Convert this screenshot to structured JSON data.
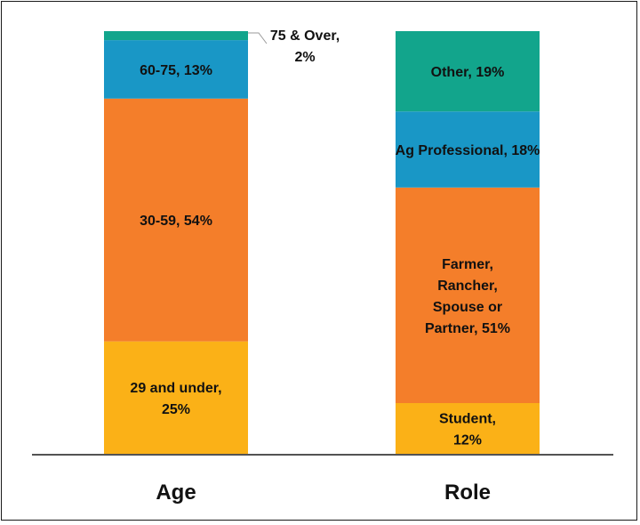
{
  "chart_data": {
    "type": "bar",
    "stacked": true,
    "normalized": true,
    "categories": [
      "Age",
      "Role"
    ],
    "bars": [
      {
        "category": "Age",
        "segments": [
          {
            "lines": [
              "29 and under,",
              "25%"
            ],
            "value": 25,
            "color": "#FBB117"
          },
          {
            "lines": [
              "30-59, 54%"
            ],
            "value": 54,
            "color": "#F47E2A"
          },
          {
            "lines": [
              "60-75, 13%"
            ],
            "value": 13,
            "color": "#1997C6"
          },
          {
            "lines": [
              "75 & Over,",
              "2%"
            ],
            "value": 2,
            "color": "#12A58C",
            "callout": true
          }
        ]
      },
      {
        "category": "Role",
        "segments": [
          {
            "lines": [
              "Student,",
              "12%"
            ],
            "value": 12,
            "color": "#FBB117"
          },
          {
            "lines": [
              "Farmer,",
              "Rancher,",
              "Spouse or",
              "Partner, 51%"
            ],
            "value": 51,
            "color": "#F47E2A"
          },
          {
            "lines": [
              "Ag Professional, 18%"
            ],
            "value": 18,
            "color": "#1997C6"
          },
          {
            "lines": [
              "Other, 19%"
            ],
            "value": 19,
            "color": "#12A58C"
          }
        ]
      }
    ],
    "ylim": [
      0,
      100
    ],
    "grid": false,
    "legend": "none"
  }
}
